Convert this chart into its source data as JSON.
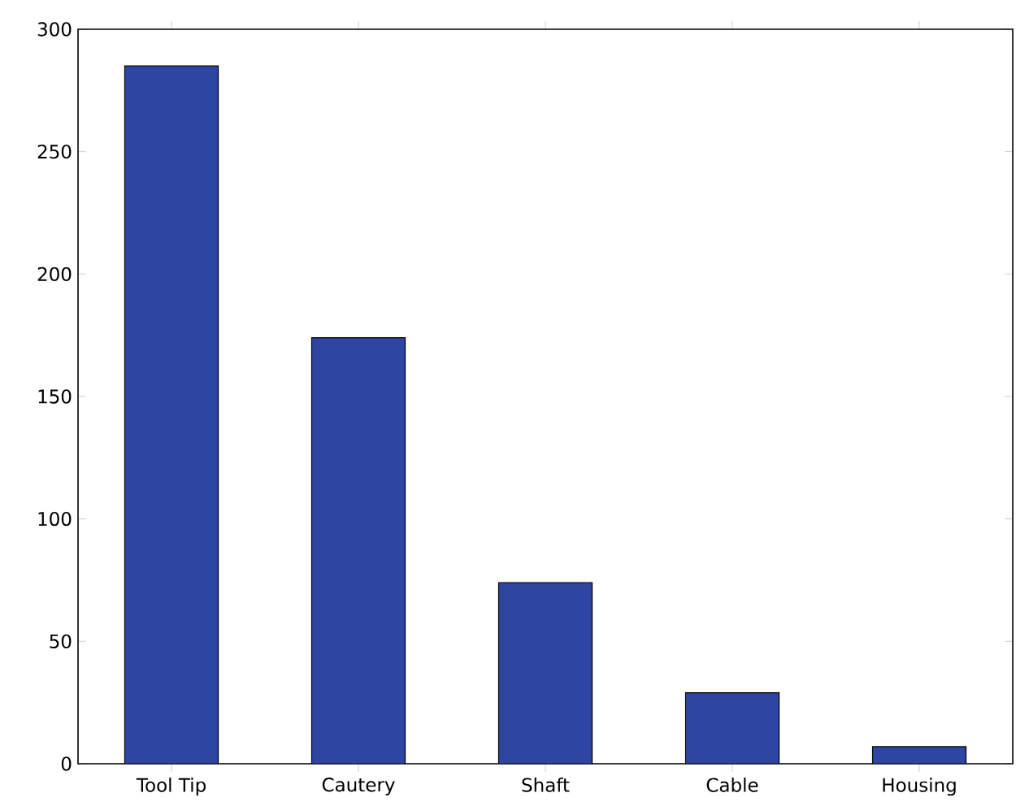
{
  "chart_data": {
    "type": "bar",
    "categories": [
      "Tool Tip",
      "Cautery",
      "Shaft",
      "Cable",
      "Housing"
    ],
    "values": [
      285,
      174,
      74,
      29,
      7
    ],
    "color": "#2e45a1",
    "ylim": [
      0,
      300
    ],
    "yticks": [
      0,
      50,
      100,
      150,
      200,
      250,
      300
    ],
    "grid": false
  }
}
